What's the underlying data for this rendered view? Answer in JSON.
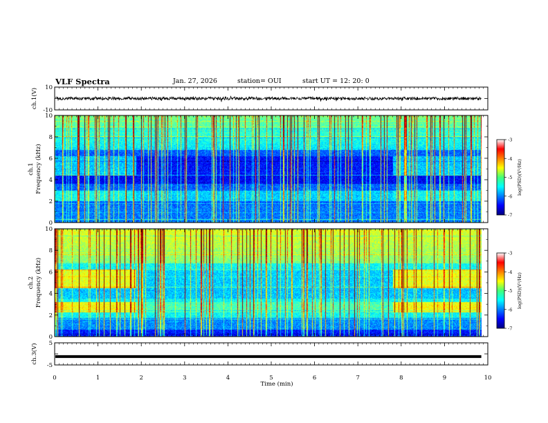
{
  "header": {
    "title": "VLF Spectra",
    "date": "Jan. 27, 2026",
    "station": "station= OUI",
    "start": "start  UT  =   12: 20: 0"
  },
  "chart_data": [
    {
      "type": "line",
      "name": "ch1-waveform",
      "ylabel": "ch.1(V)",
      "ylim": [
        -10,
        10
      ],
      "yticks": [
        "10",
        "-10"
      ],
      "description_level": 0
    },
    {
      "type": "heatmap",
      "name": "ch1-spectrogram",
      "ylabel_line1": "ch.1",
      "ylabel_line2": "Frequency (kHz)",
      "ylim": [
        0,
        10
      ],
      "yticks": [
        "0",
        "2",
        "4",
        "6",
        "8",
        "10"
      ],
      "colorbar": {
        "label": "log(PSD)(V²/Hz)",
        "ticks": [
          "-3",
          "-4",
          "-5",
          "-6",
          "-7"
        ],
        "range": [
          -7,
          -3
        ]
      }
    },
    {
      "type": "heatmap",
      "name": "ch2-spectrogram",
      "ylabel_line1": "ch.2",
      "ylabel_line2": "Frequency (kHz)",
      "ylim": [
        0,
        10
      ],
      "yticks": [
        "0",
        "2",
        "4",
        "6",
        "8",
        "10"
      ],
      "colorbar": {
        "label": "log(PSD)(V²/Hz)",
        "ticks": [
          "-3",
          "-4",
          "-5",
          "-6",
          "-7"
        ],
        "range": [
          -7,
          -3
        ]
      }
    },
    {
      "type": "line",
      "name": "ch3-waveform",
      "ylabel": "ch.3(V)",
      "ylim": [
        -5,
        5
      ],
      "yticks": [
        "5",
        "-5"
      ],
      "value_level": -1.2
    }
  ],
  "xaxis": {
    "label": "Time (min)",
    "range": [
      0,
      10
    ],
    "ticks": [
      "0",
      "1",
      "2",
      "3",
      "4",
      "5",
      "6",
      "7",
      "8",
      "9",
      "10"
    ],
    "data_end": 9.85
  }
}
